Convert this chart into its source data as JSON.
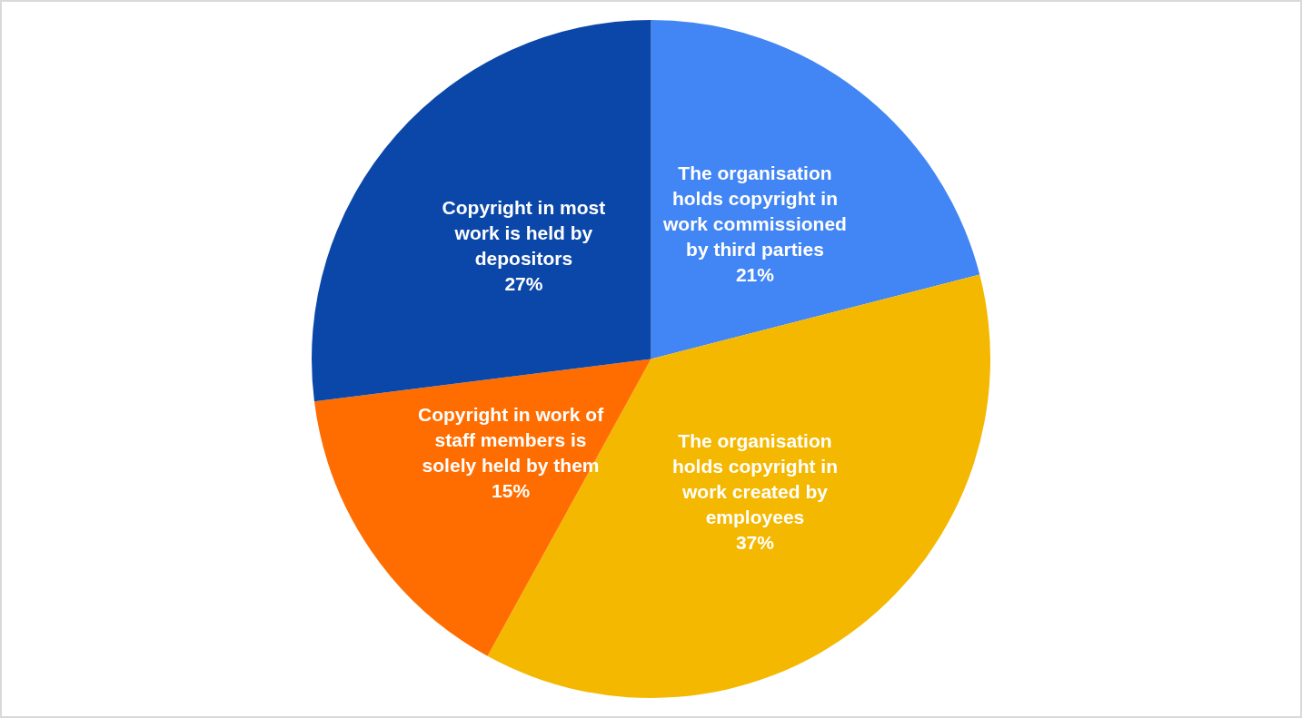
{
  "chart_data": {
    "type": "pie",
    "categories": [
      "The organisation holds copyright in work commissioned by third parties",
      "The organisation holds copyright in work created by employees",
      "Copyright in work of staff members is solely held by them",
      "Copyright in most work is held by depositors"
    ],
    "values": [
      21,
      37,
      15,
      27
    ],
    "colors": [
      "#4285f4",
      "#f4b800",
      "#ff6d00",
      "#0b47a8"
    ],
    "value_labels": [
      "21%",
      "37%",
      "15%",
      "27%"
    ],
    "legend": false
  }
}
